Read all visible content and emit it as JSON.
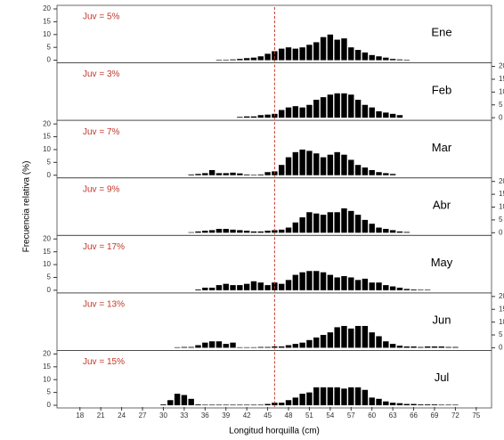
{
  "ylabel": "Frecuencia relativa (%)",
  "xlabel": "Longitud horquilla (cm)",
  "chart_data": [
    {
      "type": "bar",
      "label": "Ene",
      "annotation": "Juv = 5%",
      "color": "#000000",
      "vline": 46,
      "vline_color": "#c0392b",
      "xlim": [
        14.7,
        77.2
      ],
      "ylim": [
        0,
        20
      ],
      "yticks": [
        0,
        5,
        10,
        15,
        20
      ],
      "x": [
        38,
        39,
        40,
        41,
        42,
        43,
        44,
        45,
        46,
        47,
        48,
        49,
        50,
        51,
        52,
        53,
        54,
        55,
        56,
        57,
        58,
        59,
        60,
        61,
        62,
        63,
        64,
        65
      ],
      "values": [
        0.2,
        0.2,
        0.3,
        0.5,
        0.8,
        1,
        1.5,
        2.5,
        3.5,
        4.5,
        5,
        4.5,
        5,
        6,
        7,
        9,
        10,
        8,
        8.5,
        5,
        4,
        3,
        2,
        1.5,
        1,
        0.5,
        0.3,
        0.2
      ]
    },
    {
      "type": "bar",
      "label": "Feb",
      "annotation": "Juv = 3%",
      "color": "#000000",
      "vline": 46,
      "vline_color": "#c0392b",
      "xlim": [
        14.7,
        77.2
      ],
      "y2lim": [
        0,
        20
      ],
      "y2ticks": [
        0,
        5,
        10,
        15,
        20
      ],
      "axis": "y2",
      "x": [
        41,
        42,
        43,
        44,
        45,
        46,
        47,
        48,
        49,
        50,
        51,
        52,
        53,
        54,
        55,
        56,
        57,
        58,
        59,
        60,
        61,
        62,
        63,
        64
      ],
      "values": [
        0.3,
        0.5,
        0.5,
        1,
        1.2,
        1.5,
        3,
        4,
        4.5,
        4,
        5,
        7,
        8,
        9,
        9.5,
        9.5,
        9,
        7,
        5,
        4,
        2.5,
        2,
        1.5,
        1
      ]
    },
    {
      "type": "bar",
      "label": "Mar",
      "annotation": "Juv = 7%",
      "color": "#000000",
      "vline": 46,
      "vline_color": "#c0392b",
      "xlim": [
        14.7,
        77.2
      ],
      "ylim": [
        0,
        20
      ],
      "yticks": [
        0,
        5,
        10,
        15,
        20
      ],
      "x": [
        34,
        35,
        36,
        37,
        38,
        39,
        40,
        41,
        42,
        43,
        44,
        45,
        46,
        47,
        48,
        49,
        50,
        51,
        52,
        53,
        54,
        55,
        56,
        57,
        58,
        59,
        60,
        61,
        62,
        63
      ],
      "values": [
        0.3,
        0.5,
        0.8,
        2,
        0.8,
        0.8,
        1,
        0.7,
        0.3,
        0.2,
        0.3,
        1.2,
        1.5,
        4,
        7,
        9,
        10,
        9.5,
        8.5,
        7,
        8,
        9,
        8,
        6,
        4,
        3,
        2,
        1.2,
        0.8,
        0.5
      ]
    },
    {
      "type": "bar",
      "label": "Abr",
      "annotation": "Juv = 9%",
      "color": "#000000",
      "vline": 46,
      "vline_color": "#c0392b",
      "xlim": [
        14.7,
        77.2
      ],
      "y2lim": [
        0,
        20
      ],
      "y2ticks": [
        0,
        5,
        10,
        15,
        20
      ],
      "axis": "y2",
      "x": [
        34,
        35,
        36,
        37,
        38,
        39,
        40,
        41,
        42,
        43,
        44,
        45,
        46,
        47,
        48,
        49,
        50,
        51,
        52,
        53,
        54,
        55,
        56,
        57,
        58,
        59,
        60,
        61,
        62,
        63,
        64,
        65
      ],
      "values": [
        0.2,
        0.5,
        0.8,
        1,
        1.5,
        1.5,
        1.2,
        1,
        0.8,
        0.5,
        0.5,
        0.8,
        1,
        1.2,
        2,
        4,
        6,
        8,
        7.5,
        7,
        8,
        8,
        9.5,
        8.5,
        7,
        5,
        3.5,
        2,
        1.5,
        1,
        0.5,
        0.3
      ]
    },
    {
      "type": "bar",
      "label": "May",
      "annotation": "Juv = 17%",
      "color": "#000000",
      "vline": 46,
      "vline_color": "#c0392b",
      "xlim": [
        14.7,
        77.2
      ],
      "ylim": [
        0,
        20
      ],
      "yticks": [
        0,
        5,
        10,
        15,
        20
      ],
      "x": [
        35,
        36,
        37,
        38,
        39,
        40,
        41,
        42,
        43,
        44,
        45,
        46,
        47,
        48,
        49,
        50,
        51,
        52,
        53,
        54,
        55,
        56,
        57,
        58,
        59,
        60,
        61,
        62,
        63,
        64,
        65,
        66,
        67,
        68
      ],
      "values": [
        0.3,
        1,
        1,
        2,
        2.5,
        2,
        2,
        2.5,
        3.5,
        3,
        2,
        3,
        2.5,
        4,
        6,
        7,
        7.5,
        7.5,
        7,
        6,
        5,
        5.5,
        5,
        4,
        4.5,
        3,
        3,
        2,
        1.5,
        1,
        0.5,
        0.3,
        0.2,
        0.2
      ]
    },
    {
      "type": "bar",
      "label": "Jun",
      "annotation": "Juv = 13%",
      "color": "#000000",
      "vline": 46,
      "vline_color": "#c0392b",
      "xlim": [
        14.7,
        77.2
      ],
      "y2lim": [
        0,
        20
      ],
      "y2ticks": [
        0,
        5,
        10,
        15,
        20
      ],
      "axis": "y2",
      "x": [
        32,
        33,
        34,
        35,
        36,
        37,
        38,
        39,
        40,
        41,
        42,
        43,
        44,
        45,
        46,
        47,
        48,
        49,
        50,
        51,
        52,
        53,
        54,
        55,
        56,
        57,
        58,
        59,
        60,
        61,
        62,
        63,
        64,
        65,
        66,
        67,
        68,
        69,
        70,
        71,
        72
      ],
      "values": [
        0.2,
        0.3,
        0.3,
        1,
        2,
        2.5,
        2.5,
        1.5,
        2,
        0.2,
        0.2,
        0.2,
        0.3,
        0.3,
        0.5,
        0.5,
        1,
        1.5,
        2,
        3,
        4,
        5,
        6,
        8,
        8.5,
        7.5,
        8.5,
        8.5,
        6,
        4.5,
        2.5,
        1.5,
        0.8,
        0.5,
        0.5,
        0.3,
        0.5,
        0.5,
        0.5,
        0.3,
        0.3
      ]
    },
    {
      "type": "bar",
      "label": "Jul",
      "annotation": "Juv = 15%",
      "color": "#000000",
      "vline": 46,
      "vline_color": "#c0392b",
      "xlim": [
        14.7,
        77.2
      ],
      "ylim": [
        0,
        20
      ],
      "yticks": [
        0,
        5,
        10,
        15,
        20
      ],
      "xticks": [
        18,
        21,
        24,
        27,
        30,
        33,
        36,
        39,
        42,
        45,
        48,
        51,
        54,
        57,
        60,
        63,
        66,
        69,
        72,
        75
      ],
      "x": [
        30,
        31,
        32,
        33,
        34,
        35,
        36,
        37,
        38,
        39,
        40,
        41,
        42,
        43,
        44,
        45,
        46,
        47,
        48,
        49,
        50,
        51,
        52,
        53,
        54,
        55,
        56,
        57,
        58,
        59,
        60,
        61,
        62,
        63,
        64,
        65,
        66,
        67,
        68,
        69,
        70,
        71,
        72
      ],
      "values": [
        0.3,
        2,
        4.5,
        4,
        2.5,
        0.3,
        0.2,
        0.2,
        0.2,
        0.2,
        0.2,
        0.2,
        0.2,
        0.2,
        0.2,
        0.5,
        1,
        1,
        2,
        3,
        4.5,
        5,
        7,
        7,
        7,
        7,
        6.5,
        7,
        7,
        6,
        3,
        2.5,
        1.5,
        1,
        0.8,
        0.5,
        0.5,
        0.3,
        0.3,
        0.3,
        0.2,
        0.2,
        0.2
      ]
    }
  ]
}
